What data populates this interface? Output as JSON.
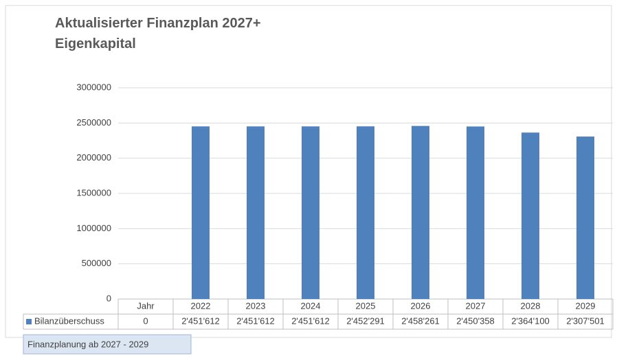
{
  "chart_data": {
    "type": "bar",
    "title": "Aktualisierter Finanzplan 2027+",
    "subtitle": "Eigenkapital",
    "categories": [
      "Jahr",
      "2022",
      "2023",
      "2024",
      "2025",
      "2026",
      "2027",
      "2028",
      "2029"
    ],
    "series": [
      {
        "name": "Bilanzüberschuss",
        "color": "#4f81bd",
        "values": [
          0,
          2451612,
          2451612,
          2451612,
          2452291,
          2458261,
          2450358,
          2364100,
          2307501
        ],
        "value_labels": [
          "0",
          "2'451'612",
          "2'451'612",
          "2'451'612",
          "2'452'291",
          "2'458'261",
          "2'450'358",
          "2'364'100",
          "2'307'501"
        ]
      }
    ],
    "ylim": [
      0,
      3000000
    ],
    "yticks": [
      0,
      500000,
      1000000,
      1500000,
      2000000,
      2500000,
      3000000
    ],
    "grid": true,
    "note": "Finanzplanung ab 2027 - 2029"
  }
}
